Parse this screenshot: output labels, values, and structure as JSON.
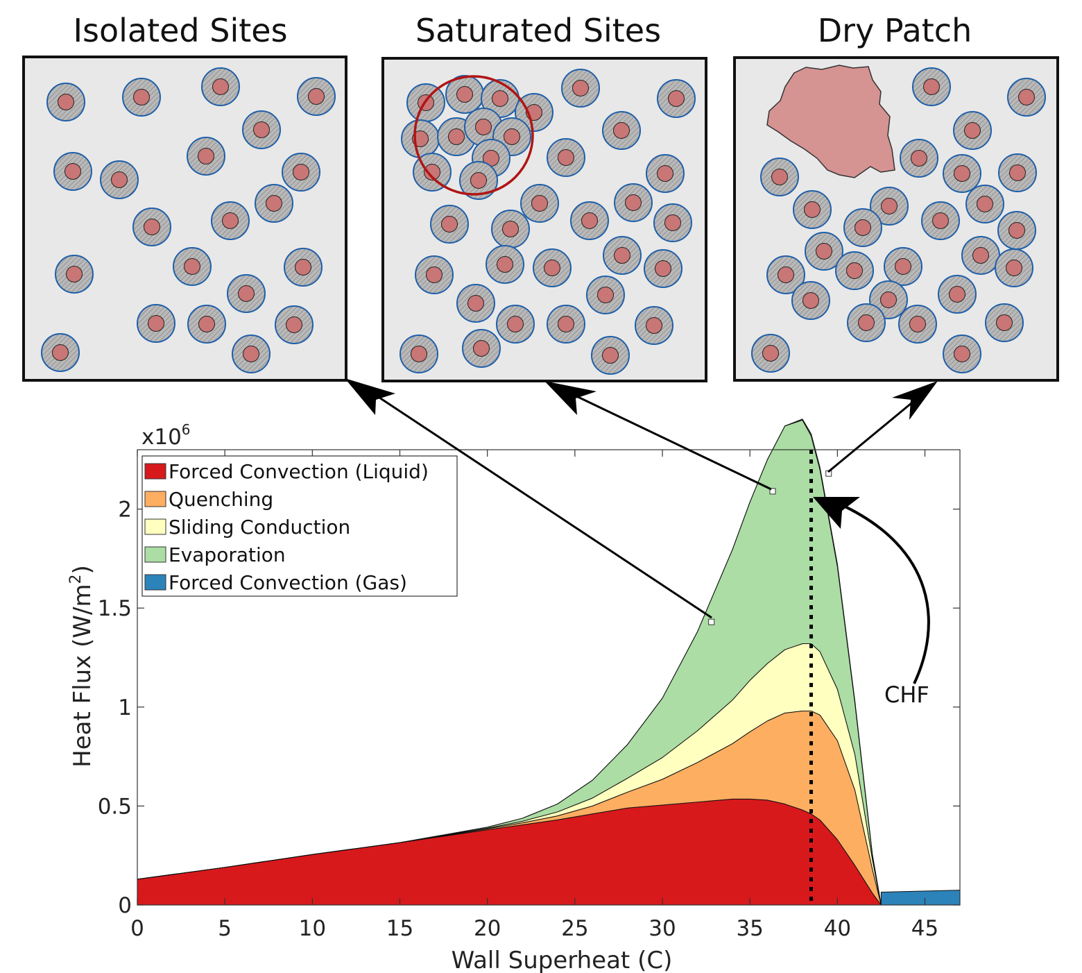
{
  "panels": [
    {
      "title": "Isolated Sites"
    },
    {
      "title": "Saturated Sites"
    },
    {
      "title": "Dry Patch"
    }
  ],
  "annotation": "CHF",
  "exponent_base": "x10",
  "exponent_power": "6",
  "colors": {
    "liquid": "#d7191c",
    "quenching": "#fdae61",
    "sliding": "#ffffbf",
    "evaporation": "#abdda4",
    "gas": "#2b83ba",
    "panel_bg": "#e8e8e8",
    "site_ring": "#1f5fa8",
    "site_core": "#c97676",
    "dry_patch": "#d59392",
    "cluster_ring": "#b01515"
  },
  "chart_data": {
    "type": "area",
    "xlabel": "Wall Superheat (C)",
    "ylabel_main": "Heat Flux (W/m",
    "ylabel_sup": "2",
    "ylabel_end": ")",
    "xlim": [
      0,
      47
    ],
    "ylim": [
      0,
      2.3
    ],
    "x_ticks": [
      "0",
      "5",
      "10",
      "15",
      "20",
      "25",
      "30",
      "35",
      "40",
      "45"
    ],
    "y_ticks": [
      "0",
      "0.5",
      "1",
      "1.5",
      "2"
    ],
    "chf_x": 38.5,
    "x": [
      0,
      5,
      10,
      15,
      20,
      22,
      24,
      26,
      28,
      30,
      32,
      34,
      35,
      36,
      37,
      38,
      38.5,
      39,
      40,
      41,
      42,
      42.5
    ],
    "series": [
      {
        "name": "Forced Convection (Liquid)",
        "color_key": "liquid",
        "values": [
          0.13,
          0.19,
          0.255,
          0.315,
          0.38,
          0.405,
          0.43,
          0.46,
          0.49,
          0.505,
          0.52,
          0.535,
          0.535,
          0.53,
          0.51,
          0.48,
          0.46,
          0.43,
          0.33,
          0.2,
          0.06,
          0
        ]
      },
      {
        "name": "Quenching",
        "color_key": "quenching",
        "values": [
          0,
          0,
          0,
          0,
          0.005,
          0.01,
          0.02,
          0.04,
          0.08,
          0.13,
          0.2,
          0.28,
          0.34,
          0.4,
          0.46,
          0.5,
          0.52,
          0.53,
          0.5,
          0.38,
          0.12,
          0
        ]
      },
      {
        "name": "Sliding Conduction",
        "color_key": "sliding",
        "values": [
          0,
          0,
          0,
          0,
          0.003,
          0.008,
          0.02,
          0.04,
          0.07,
          0.11,
          0.16,
          0.22,
          0.26,
          0.29,
          0.32,
          0.34,
          0.34,
          0.32,
          0.26,
          0.18,
          0.05,
          0
        ]
      },
      {
        "name": "Evaporation",
        "color_key": "evaporation",
        "values": [
          0,
          0,
          0,
          0,
          0.005,
          0.015,
          0.04,
          0.09,
          0.17,
          0.3,
          0.5,
          0.76,
          0.9,
          1.03,
          1.13,
          1.13,
          1.05,
          0.92,
          0.62,
          0.26,
          0.02,
          0
        ]
      },
      {
        "name": "Forced Convection (Gas)",
        "color_key": "gas",
        "values": [
          0,
          0,
          0,
          0,
          0,
          0,
          0,
          0,
          0,
          0,
          0,
          0,
          0,
          0,
          0,
          0.005,
          0.01,
          0.012,
          0.012,
          0.01,
          0.005,
          0
        ]
      }
    ],
    "gas_region": {
      "x": [
        42.5,
        47
      ],
      "values": [
        0.065,
        0.075
      ]
    },
    "markers": [
      {
        "x": 32.8,
        "y": 1.43
      },
      {
        "x": 36.3,
        "y": 2.09
      },
      {
        "x": 39.5,
        "y": 2.18
      }
    ],
    "legend_position": "top-left",
    "grid": false
  }
}
